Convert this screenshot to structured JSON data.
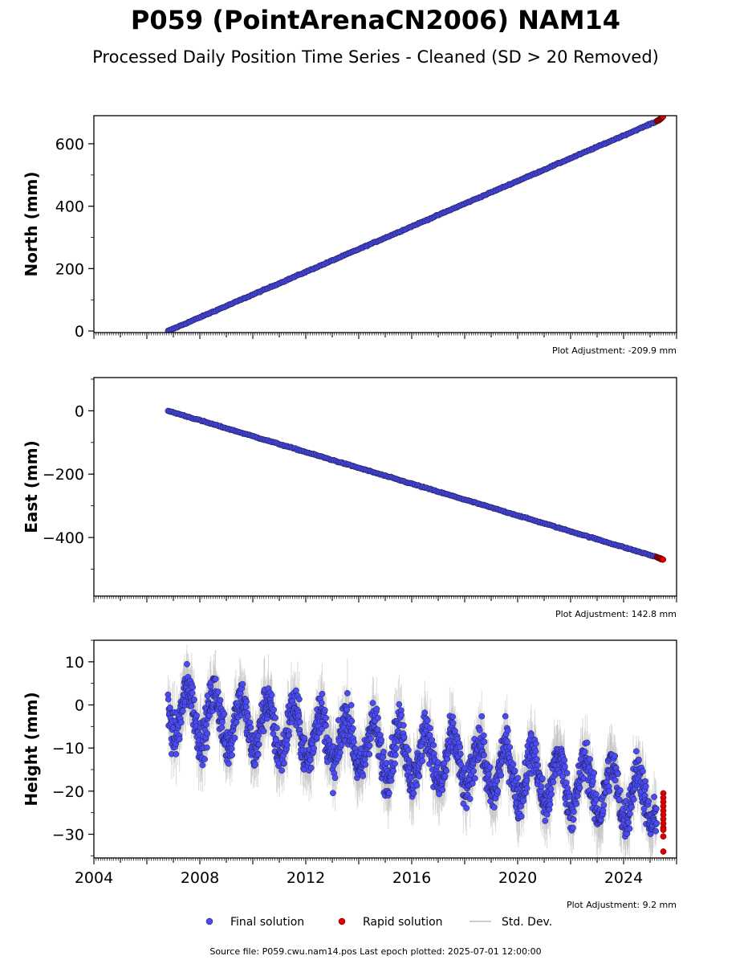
{
  "title": "P059 (PointArenaCN2006) NAM14",
  "subtitle": "Processed Daily Position Time Series - Cleaned (SD > 20 Removed)",
  "legend": {
    "final": "Final solution",
    "rapid": "Rapid solution",
    "std": "Std. Dev."
  },
  "source": "Source file: P059.cwu.nam14.pos  Last epoch plotted: 2025-07-01 12:00:00",
  "colors": {
    "final": "#4b4bf5",
    "rapid": "#e00000",
    "std": "#bdbdbd",
    "edge": "#1a1a40"
  },
  "chart_data": [
    {
      "type": "scatter",
      "ylabel": "North (mm)",
      "adjustment": "Plot Adjustment: -209.9 mm",
      "xlim": [
        2004.0,
        2026.0
      ],
      "ylim": [
        -5,
        690
      ],
      "yticks": [
        0,
        200,
        400,
        600
      ],
      "show_xtick_labels": false,
      "series": [
        {
          "name": "Final solution",
          "model": "linear",
          "start": [
            2006.8,
            0
          ],
          "end": [
            2025.25,
            672
          ],
          "noise": 1.2
        },
        {
          "name": "Rapid solution",
          "model": "linear",
          "start": [
            2025.25,
            672
          ],
          "end": [
            2025.5,
            686
          ],
          "noise": 1.2
        }
      ]
    },
    {
      "type": "scatter",
      "ylabel": "East (mm)",
      "adjustment": "Plot Adjustment: 142.8 mm",
      "xlim": [
        2004.0,
        2026.0
      ],
      "ylim": [
        -585,
        105
      ],
      "yticks": [
        0,
        -200,
        -400
      ],
      "show_xtick_labels": false,
      "series": [
        {
          "name": "Final solution",
          "model": "linear",
          "start": [
            2006.8,
            0
          ],
          "end": [
            2025.25,
            -462
          ],
          "noise": 1.2
        },
        {
          "name": "Rapid solution",
          "model": "linear",
          "start": [
            2025.25,
            -462
          ],
          "end": [
            2025.5,
            -470
          ],
          "noise": 1.2
        }
      ]
    },
    {
      "type": "scatter",
      "ylabel": "Height (mm)",
      "adjustment": "Plot Adjustment: 9.2 mm",
      "xlim": [
        2004.0,
        2026.0
      ],
      "ylim": [
        -35.5,
        15
      ],
      "yticks": [
        10,
        0,
        -10,
        -20,
        -30
      ],
      "xticks": [
        "2004",
        "2008",
        "2012",
        "2016",
        "2020",
        "2024"
      ],
      "show_xtick_labels": true,
      "series": [
        {
          "name": "Final solution",
          "model": "seasonal",
          "start": [
            2006.8,
            -1
          ],
          "end": [
            2025.25,
            -22
          ],
          "amplitude": 6,
          "noise": 3.5
        },
        {
          "name": "Rapid solution",
          "model": "cluster",
          "x": 2025.5,
          "values": [
            -20.5,
            -21.5,
            -22.5,
            -23.5,
            -24.5,
            -25.5,
            -26.5,
            -27.5,
            -28.5,
            -29,
            -30.5,
            -34
          ]
        }
      ]
    }
  ]
}
